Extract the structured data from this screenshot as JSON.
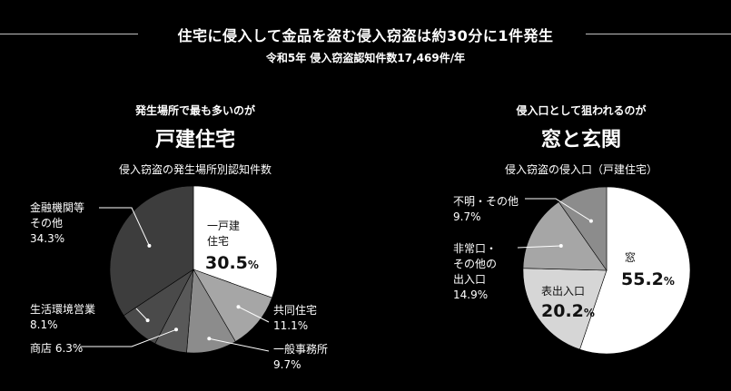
{
  "header": {
    "title": "住宅に侵入して金品を盗む侵入窃盗は約30分に1件発生",
    "subtitle": "令和5年 侵入窃盗認知件数17,469件/年"
  },
  "left": {
    "lead": "発生場所で最も多いのが",
    "headline": "戸建住宅",
    "caption": "侵入窃盗の発生場所別認知件数"
  },
  "right": {
    "lead": "侵入口として狙われるのが",
    "headline": "窓と玄関",
    "caption": "侵入窃盗の侵入口（戸建住宅）"
  },
  "colors": {
    "white": "#ffffff",
    "light_gray": "#d6d6d6",
    "mid_gray": "#a6a6a6",
    "gray": "#8c8c8c",
    "dark_gray": "#595959",
    "darker_gray": "#4a4a4a",
    "darkest_gray": "#3d3d3d"
  },
  "chart_data": [
    {
      "type": "pie",
      "title": "侵入窃盗の発生場所別認知件数",
      "slices": [
        {
          "label": "一戸建住宅",
          "value": 30.5,
          "color": "#ffffff"
        },
        {
          "label": "共同住宅",
          "value": 11.1,
          "color": "#a6a6a6"
        },
        {
          "label": "一般事務所",
          "value": 9.7,
          "color": "#8c8c8c"
        },
        {
          "label": "商店",
          "value": 6.3,
          "color": "#595959"
        },
        {
          "label": "生活環境営業",
          "value": 8.1,
          "color": "#4a4a4a"
        },
        {
          "label": "金融機関等その他",
          "value": 34.3,
          "color": "#3d3d3d"
        }
      ],
      "labels": {
        "detached_line1": "一戸建",
        "detached_line2": "住宅",
        "detached_num": "30.5",
        "apartment_name": "共同住宅",
        "apartment_pct": "11.1%",
        "office_name": "一般事務所",
        "office_pct": "9.7%",
        "shop": "商店 6.3%",
        "env_name": "生活環境営業",
        "env_pct": "8.1%",
        "other_line1": "金融機関等",
        "other_line2": "その他",
        "other_pct": "34.3%",
        "pct_sign": "%"
      }
    },
    {
      "type": "pie",
      "title": "侵入窃盗の侵入口（戸建住宅）",
      "slices": [
        {
          "label": "窓",
          "value": 55.2,
          "color": "#ffffff"
        },
        {
          "label": "表出入口",
          "value": 20.2,
          "color": "#d6d6d6"
        },
        {
          "label": "非常口・その他の出入口",
          "value": 14.9,
          "color": "#a6a6a6"
        },
        {
          "label": "不明・その他",
          "value": 9.7,
          "color": "#8c8c8c"
        }
      ],
      "labels": {
        "window_name": "窓",
        "window_num": "55.2",
        "front_name": "表出入口",
        "front_num": "20.2",
        "emergency_line1": "非常口・",
        "emergency_line2": "その他の",
        "emergency_line3": "出入口",
        "emergency_pct": "14.9%",
        "unknown_name": "不明・その他",
        "unknown_pct": "9.7%",
        "pct_sign": "%"
      }
    }
  ]
}
